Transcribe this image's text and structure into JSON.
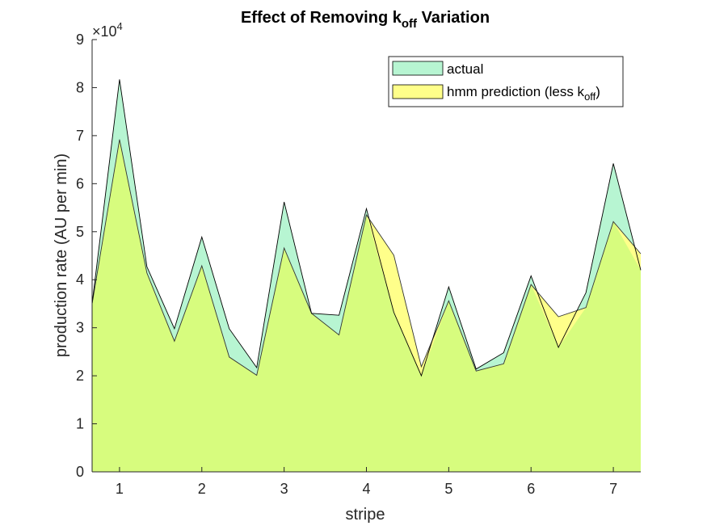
{
  "chart_data": {
    "type": "area",
    "title_main": "Effect of Removing k",
    "title_sub": "off",
    "title_tail": " Variation",
    "xlabel": "stripe",
    "ylabel": "production rate (AU per min)",
    "exponent_label": "×10",
    "exponent_power": "4",
    "xlim": [
      0.667,
      7.333
    ],
    "ylim": [
      0,
      90000
    ],
    "xticks": [
      1,
      2,
      3,
      4,
      5,
      6,
      7
    ],
    "xtick_labels": [
      "1",
      "2",
      "3",
      "4",
      "5",
      "6",
      "7"
    ],
    "yticks": [
      0,
      10000,
      20000,
      30000,
      40000,
      50000,
      60000,
      70000,
      80000,
      90000
    ],
    "ytick_labels": [
      "0",
      "1",
      "2",
      "3",
      "4",
      "5",
      "6",
      "7",
      "8",
      "9"
    ],
    "x": [
      0.667,
      1.0,
      1.333,
      1.667,
      2.0,
      2.333,
      2.667,
      3.0,
      3.333,
      3.667,
      4.0,
      4.333,
      4.667,
      5.0,
      5.333,
      5.667,
      6.0,
      6.333,
      6.667,
      7.0,
      7.333
    ],
    "series": [
      {
        "name": "actual",
        "color": "#b7f5d2",
        "values": [
          35000,
          81700,
          42700,
          29800,
          48900,
          29800,
          21700,
          56200,
          33000,
          32600,
          54800,
          33200,
          20000,
          38500,
          21400,
          24800,
          40800,
          25900,
          37300,
          64200,
          42000
        ]
      },
      {
        "name_main": "hmm prediction (less k",
        "name_sub": "off",
        "name_tail": ")",
        "color": "#ffff8a",
        "values": [
          35000,
          69200,
          41400,
          27200,
          42900,
          23900,
          20100,
          46600,
          33000,
          28500,
          53500,
          45100,
          21900,
          35600,
          21000,
          22500,
          39000,
          32300,
          34200,
          52100,
          45400
        ]
      }
    ],
    "overlap_color": "#d7fc7e",
    "legend_position": "top-right",
    "grid": false
  }
}
